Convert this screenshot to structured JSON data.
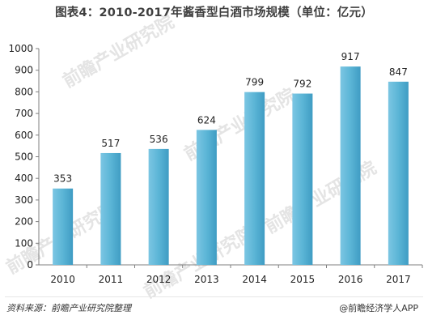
{
  "title": "图表4：2010-2017年酱香型白酒市场规模（单位：亿元）",
  "source": "资料来源：前瞻产业研究院整理",
  "brand": "@前瞻经济学人APP",
  "watermark": "前瞻产业研究院",
  "colors": {
    "bar": "#5bb5d6",
    "bar_dark": "#3a98bd",
    "axis": "#7f7f7f",
    "text": "#222222"
  },
  "chart_data": {
    "type": "bar",
    "categories": [
      "2010",
      "2011",
      "2012",
      "2013",
      "2014",
      "2015",
      "2016",
      "2017"
    ],
    "values": [
      353,
      517,
      536,
      624,
      799,
      792,
      917,
      847
    ],
    "ylim": [
      0,
      1000
    ],
    "yticks": [
      0,
      100,
      200,
      300,
      400,
      500,
      600,
      700,
      800,
      900,
      1000
    ],
    "grid": false,
    "legend": "none"
  }
}
